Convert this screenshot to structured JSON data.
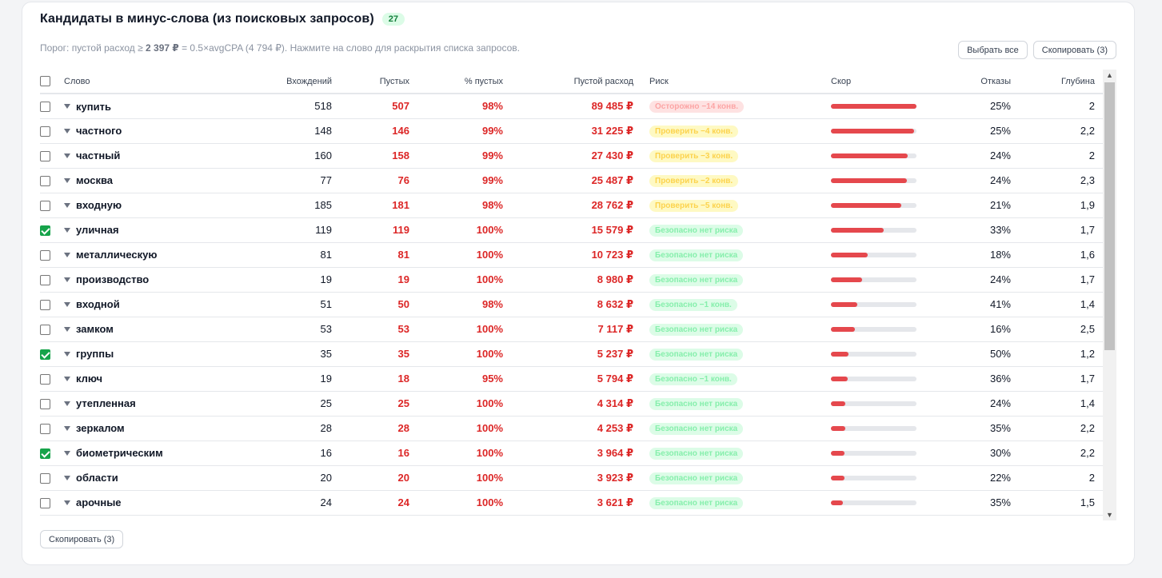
{
  "header": {
    "title": "Кандидаты в минус-слова (из поисковых запросов)",
    "count": "27",
    "subtitle_prefix": "Порог: пустой расход ≥",
    "subtitle_threshold": "2 397 ₽",
    "subtitle_suffix": "= 0.5×avgCPA (4 794 ₽). Нажмите на слово для раскрытия списка запросов."
  },
  "toolbar": {
    "select_all_label": "Выбрать все",
    "copy_label": "Скопировать (3)"
  },
  "footer": {
    "copy_label": "Скопировать (3)"
  },
  "columns": {
    "word": "Слово",
    "occurrences": "Вхождений",
    "empty": "Пустых",
    "empty_pct": "% пустых",
    "empty_spend": "Пустой расход",
    "risk": "Риск",
    "score": "Скор",
    "bounces": "Отказы",
    "depth": "Глубина"
  },
  "rows": [
    {
      "checked": false,
      "word": "купить",
      "occurrences": "518",
      "empty": "507",
      "empty_pct": "98%",
      "spend": "89 485 ₽",
      "risk": "Осторожно −14 конв.",
      "risk_level": "danger",
      "score": 1.0,
      "bounces": "25%",
      "depth": "2"
    },
    {
      "checked": false,
      "word": "частного",
      "occurrences": "148",
      "empty": "146",
      "empty_pct": "99%",
      "spend": "31 225 ₽",
      "risk": "Проверить −4 конв.",
      "risk_level": "warn",
      "score": 0.97,
      "bounces": "25%",
      "depth": "2,2"
    },
    {
      "checked": false,
      "word": "частный",
      "occurrences": "160",
      "empty": "158",
      "empty_pct": "99%",
      "spend": "27 430 ₽",
      "risk": "Проверить −3 конв.",
      "risk_level": "warn",
      "score": 0.9,
      "bounces": "24%",
      "depth": "2"
    },
    {
      "checked": false,
      "word": "москва",
      "occurrences": "77",
      "empty": "76",
      "empty_pct": "99%",
      "spend": "25 487 ₽",
      "risk": "Проверить −2 конв.",
      "risk_level": "warn",
      "score": 0.89,
      "bounces": "24%",
      "depth": "2,3"
    },
    {
      "checked": false,
      "word": "входную",
      "occurrences": "185",
      "empty": "181",
      "empty_pct": "98%",
      "spend": "28 762 ₽",
      "risk": "Проверить −5 конв.",
      "risk_level": "warn",
      "score": 0.82,
      "bounces": "21%",
      "depth": "1,9"
    },
    {
      "checked": true,
      "word": "уличная",
      "occurrences": "119",
      "empty": "119",
      "empty_pct": "100%",
      "spend": "15 579 ₽",
      "risk": "Безопасно нет риска",
      "risk_level": "safe",
      "score": 0.62,
      "bounces": "33%",
      "depth": "1,7"
    },
    {
      "checked": false,
      "word": "металлическую",
      "occurrences": "81",
      "empty": "81",
      "empty_pct": "100%",
      "spend": "10 723 ₽",
      "risk": "Безопасно нет риска",
      "risk_level": "safe",
      "score": 0.43,
      "bounces": "18%",
      "depth": "1,6"
    },
    {
      "checked": false,
      "word": "производство",
      "occurrences": "19",
      "empty": "19",
      "empty_pct": "100%",
      "spend": "8 980 ₽",
      "risk": "Безопасно нет риска",
      "risk_level": "safe",
      "score": 0.36,
      "bounces": "24%",
      "depth": "1,7"
    },
    {
      "checked": false,
      "word": "входной",
      "occurrences": "51",
      "empty": "50",
      "empty_pct": "98%",
      "spend": "8 632 ₽",
      "risk": "Безопасно −1 конв.",
      "risk_level": "safe",
      "score": 0.31,
      "bounces": "41%",
      "depth": "1,4"
    },
    {
      "checked": false,
      "word": "замком",
      "occurrences": "53",
      "empty": "53",
      "empty_pct": "100%",
      "spend": "7 117 ₽",
      "risk": "Безопасно нет риска",
      "risk_level": "safe",
      "score": 0.28,
      "bounces": "16%",
      "depth": "2,5"
    },
    {
      "checked": true,
      "word": "группы",
      "occurrences": "35",
      "empty": "35",
      "empty_pct": "100%",
      "spend": "5 237 ₽",
      "risk": "Безопасно нет риска",
      "risk_level": "safe",
      "score": 0.21,
      "bounces": "50%",
      "depth": "1,2"
    },
    {
      "checked": false,
      "word": "ключ",
      "occurrences": "19",
      "empty": "18",
      "empty_pct": "95%",
      "spend": "5 794 ₽",
      "risk": "Безопасно −1 конв.",
      "risk_level": "safe",
      "score": 0.2,
      "bounces": "36%",
      "depth": "1,7"
    },
    {
      "checked": false,
      "word": "утепленная",
      "occurrences": "25",
      "empty": "25",
      "empty_pct": "100%",
      "spend": "4 314 ₽",
      "risk": "Безопасно нет риска",
      "risk_level": "safe",
      "score": 0.17,
      "bounces": "24%",
      "depth": "1,4"
    },
    {
      "checked": false,
      "word": "зеркалом",
      "occurrences": "28",
      "empty": "28",
      "empty_pct": "100%",
      "spend": "4 253 ₽",
      "risk": "Безопасно нет риска",
      "risk_level": "safe",
      "score": 0.17,
      "bounces": "35%",
      "depth": "2,2"
    },
    {
      "checked": true,
      "word": "биометрическим",
      "occurrences": "16",
      "empty": "16",
      "empty_pct": "100%",
      "spend": "3 964 ₽",
      "risk": "Безопасно нет риска",
      "risk_level": "safe",
      "score": 0.16,
      "bounces": "30%",
      "depth": "2,2"
    },
    {
      "checked": false,
      "word": "области",
      "occurrences": "20",
      "empty": "20",
      "empty_pct": "100%",
      "spend": "3 923 ₽",
      "risk": "Безопасно нет риска",
      "risk_level": "safe",
      "score": 0.16,
      "bounces": "22%",
      "depth": "2"
    },
    {
      "checked": false,
      "word": "арочные",
      "occurrences": "24",
      "empty": "24",
      "empty_pct": "100%",
      "spend": "3 621 ₽",
      "risk": "Безопасно нет риска",
      "risk_level": "safe",
      "score": 0.14,
      "bounces": "35%",
      "depth": "1,5"
    }
  ],
  "colors": {
    "accent_red": "#dc2626",
    "bar_red": "#e5484d",
    "check_green": "#16a34a"
  }
}
